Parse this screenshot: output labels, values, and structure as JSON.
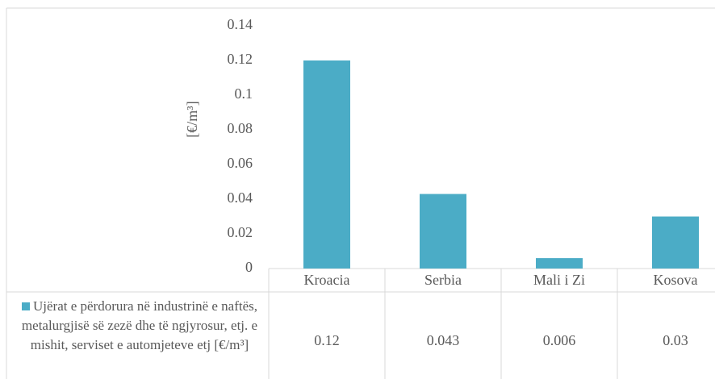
{
  "chart_data": {
    "type": "bar",
    "y_label": "[€/m³]",
    "categories": [
      "Kroacia",
      "Serbia",
      "Mali i Zi",
      "Kosova"
    ],
    "series": [
      {
        "name": "Ujërat e përdorura në industrinë e naftës, metalurgjisë së zezë dhe të ngjyrosur, etj. e mishit, serviset e automjeteve etj [€/m³]",
        "color": "#4bacc6",
        "values": [
          0.12,
          0.043,
          0.006,
          0.03
        ]
      }
    ],
    "ylim": [
      0,
      0.14
    ],
    "yticks": [
      0,
      0.02,
      0.04,
      0.06,
      0.08,
      0.1,
      0.12,
      0.14
    ],
    "grid": false,
    "data_table": true
  }
}
